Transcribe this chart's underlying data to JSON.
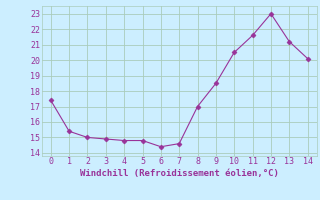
{
  "x": [
    0,
    1,
    2,
    3,
    4,
    5,
    6,
    7,
    8,
    9,
    10,
    11,
    12,
    13,
    14
  ],
  "y": [
    17.4,
    15.4,
    15.0,
    14.9,
    14.8,
    14.8,
    14.4,
    14.6,
    17.0,
    18.5,
    20.5,
    21.6,
    23.0,
    21.2,
    20.1
  ],
  "line_color": "#993399",
  "marker": "D",
  "marker_size": 2.5,
  "bg_color": "#cceeff",
  "grid_color": "#aaccbb",
  "xlabel": "Windchill (Refroidissement éolien,°C)",
  "xlabel_color": "#993399",
  "tick_color": "#993399",
  "xlim": [
    -0.5,
    14.5
  ],
  "ylim": [
    13.8,
    23.5
  ],
  "yticks": [
    14,
    15,
    16,
    17,
    18,
    19,
    20,
    21,
    22,
    23
  ],
  "xticks": [
    0,
    1,
    2,
    3,
    4,
    5,
    6,
    7,
    8,
    9,
    10,
    11,
    12,
    13,
    14
  ],
  "figsize": [
    3.2,
    2.0
  ],
  "dpi": 100
}
